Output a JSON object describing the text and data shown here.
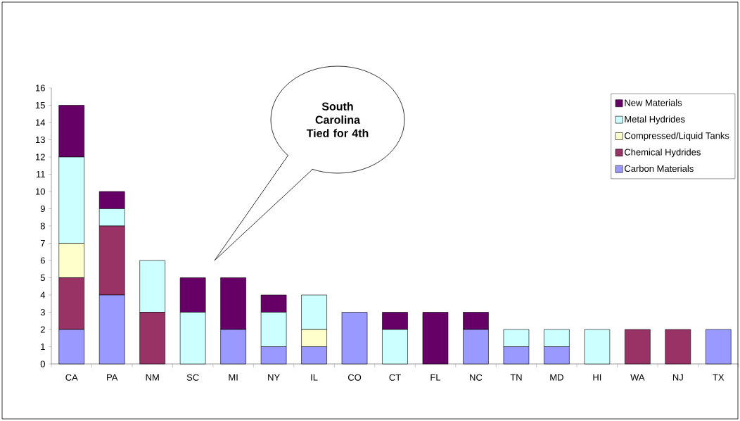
{
  "chart_data": {
    "type": "bar",
    "stacked": true,
    "categories": [
      "CA",
      "PA",
      "NM",
      "SC",
      "MI",
      "NY",
      "IL",
      "CO",
      "CT",
      "FL",
      "NC",
      "TN",
      "MD",
      "HI",
      "WA",
      "NJ",
      "TX"
    ],
    "series": [
      {
        "name": "Carbon Materials",
        "color": "#9999ff",
        "values": [
          2,
          4,
          0,
          0,
          2,
          1,
          1,
          3,
          0,
          0,
          2,
          1,
          1,
          0,
          0,
          0,
          2
        ]
      },
      {
        "name": "Chemical Hydrides",
        "color": "#993366",
        "values": [
          3,
          4,
          3,
          0,
          0,
          0,
          0,
          0,
          0,
          0,
          0,
          0,
          0,
          0,
          2,
          2,
          0
        ]
      },
      {
        "name": "Compressed/Liquid Tanks",
        "color": "#ffffcc",
        "values": [
          2,
          0,
          0,
          0,
          0,
          0,
          1,
          0,
          0,
          0,
          0,
          0,
          0,
          0,
          0,
          0,
          0
        ]
      },
      {
        "name": "Metal Hydrides",
        "color": "#ccffff",
        "values": [
          5,
          1,
          3,
          3,
          0,
          2,
          2,
          0,
          2,
          0,
          0,
          1,
          1,
          2,
          0,
          0,
          0
        ]
      },
      {
        "name": "New Materials",
        "color": "#660066",
        "values": [
          3,
          1,
          0,
          2,
          3,
          1,
          0,
          0,
          1,
          3,
          1,
          0,
          0,
          0,
          0,
          0,
          0
        ]
      }
    ],
    "ylim": [
      0,
      16
    ],
    "yticks": [
      0,
      1,
      2,
      3,
      4,
      5,
      6,
      7,
      8,
      9,
      10,
      11,
      12,
      13,
      14,
      15,
      16
    ],
    "grid": false,
    "legend": "top right",
    "annotations": [
      "South Carolina Tied for 4th"
    ]
  }
}
